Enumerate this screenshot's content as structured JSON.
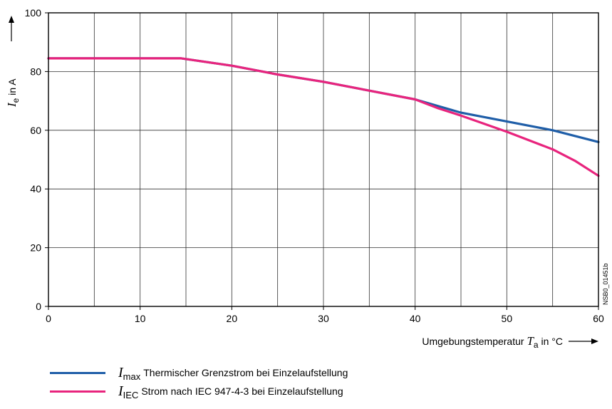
{
  "chart_data": {
    "type": "line",
    "xlabel": {
      "prefix": "Umgebungstemperatur ",
      "symbol": "T",
      "subscript": "a",
      "suffix": " in °C"
    },
    "ylabel": {
      "symbol": "I",
      "subscript": "e",
      "suffix": " in A"
    },
    "xlim": [
      0,
      60
    ],
    "ylim": [
      0,
      100
    ],
    "xticks": [
      0,
      10,
      20,
      30,
      40,
      50,
      60
    ],
    "yticks": [
      0,
      20,
      40,
      60,
      80,
      100
    ],
    "grid_x_step": 5,
    "grid_y_step": 20,
    "grid": true,
    "legend_position": "bottom-left, below plot",
    "figure_code": "NSB0_01451b",
    "series": [
      {
        "key": "imax",
        "name": {
          "symbol": "I",
          "subscript": "max",
          "text": "Thermischer Grenzstrom bei Einzelaufstellung"
        },
        "color": "#1f5ea8",
        "x": [
          0,
          5,
          10,
          14.5,
          20,
          25,
          30,
          35,
          40,
          45,
          50,
          55,
          60
        ],
        "y": [
          84.5,
          84.5,
          84.5,
          84.5,
          82,
          79,
          76.5,
          73.5,
          70.5,
          66,
          63,
          60,
          56
        ]
      },
      {
        "key": "iiec",
        "name": {
          "symbol": "I",
          "subscript": "IEC",
          "text": "Strom nach IEC 947-4-3 bei Einzelaufstellung"
        },
        "color": "#e8247d",
        "x": [
          0,
          5,
          10,
          14.5,
          20,
          25,
          30,
          35,
          40,
          42.5,
          45,
          50,
          55,
          57.5,
          60
        ],
        "y": [
          84.5,
          84.5,
          84.5,
          84.5,
          82,
          79,
          76.5,
          73.5,
          70.5,
          67.5,
          65,
          59.5,
          53.5,
          49.5,
          44.5
        ]
      }
    ]
  }
}
